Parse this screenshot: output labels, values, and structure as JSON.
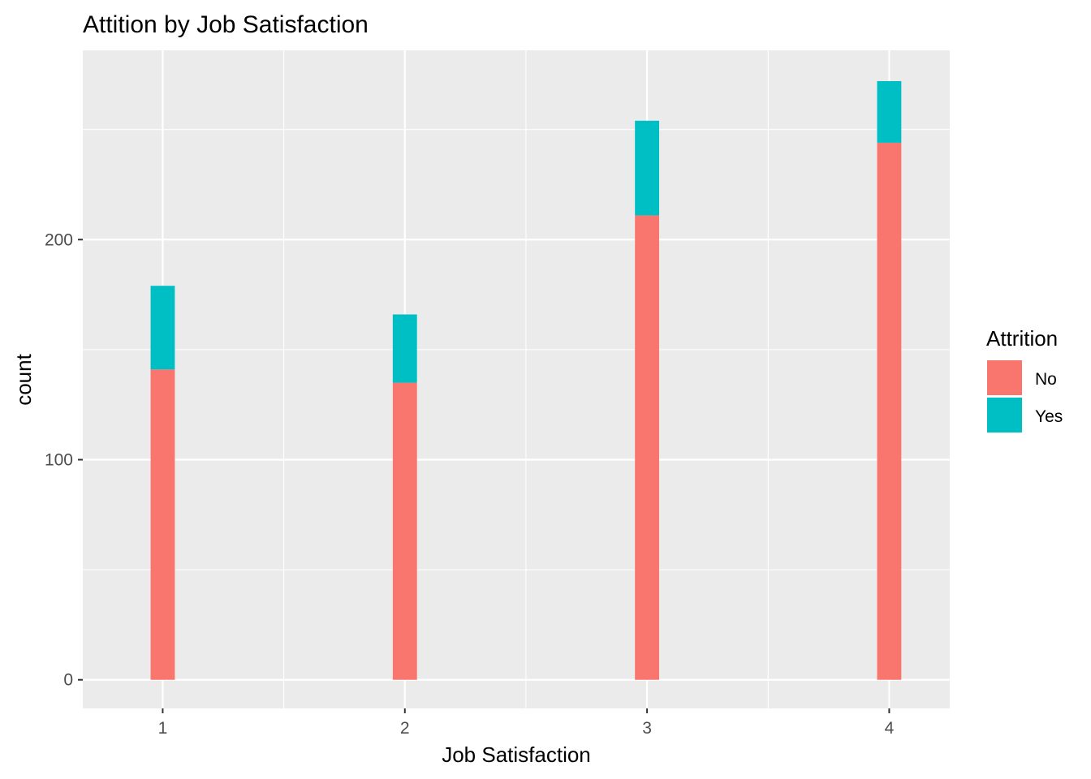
{
  "chart_data": {
    "type": "bar",
    "title": "Attition by Job Satisfaction",
    "xlabel": "Job Satisfaction",
    "ylabel": "count",
    "x_ticks": [
      "1",
      "2",
      "3",
      "4"
    ],
    "y_ticks": [
      0,
      100,
      200
    ],
    "y_tick_labels": [
      "0",
      "100",
      "200"
    ],
    "xlim": [
      0.67,
      4.25
    ],
    "ylim": [
      -13,
      286
    ],
    "stacked": true,
    "grid": true,
    "legend": {
      "title": "Attrition",
      "position": "right"
    },
    "categories": [
      1,
      2,
      3,
      4
    ],
    "series": [
      {
        "name": "No",
        "color": "#F8766D",
        "values": [
          141,
          135,
          211,
          244
        ]
      },
      {
        "name": "Yes",
        "color": "#00BFC4",
        "values": [
          38,
          31,
          43,
          28
        ]
      }
    ],
    "bar_width": 0.1
  }
}
